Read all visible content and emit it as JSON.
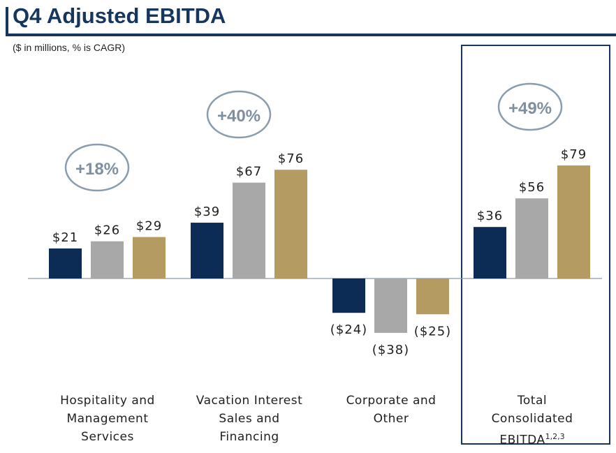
{
  "header": {
    "title": "Q4 Adjusted EBITDA",
    "subtitle": "($ in millions, % is CAGR)"
  },
  "colors": {
    "brand": "#17365d",
    "series": [
      "#0c2c55",
      "#a8a8a8",
      "#b49b62"
    ],
    "cagr_ellipse": "#8a9cad",
    "cagr_text": "#7f8fa0",
    "baseline": "#8a97a8"
  },
  "chart_data": {
    "type": "bar",
    "title": "Q4 Adjusted EBITDA",
    "subtitle": "($ in millions, % is CAGR)",
    "categories": [
      "Hospitality and Management Services",
      "Vacation Interest Sales and Financing",
      "Corporate and Other",
      "Total Consolidated EBITDA"
    ],
    "category_lines": [
      [
        "Hospitality and",
        "Management",
        "Services"
      ],
      [
        "Vacation Interest",
        "Sales and",
        "Financing"
      ],
      [
        "Corporate and",
        "Other"
      ],
      [
        "Total",
        "Consolidated",
        "EBITDA"
      ]
    ],
    "footnote_marker": "1,2,3",
    "series": [
      {
        "values": [
          21,
          39,
          -24,
          36
        ],
        "labels": [
          "$21",
          "$39",
          "($24)",
          "$36"
        ]
      },
      {
        "values": [
          26,
          67,
          -38,
          56
        ],
        "labels": [
          "$26",
          "$67",
          "($38)",
          "$56"
        ]
      },
      {
        "values": [
          29,
          76,
          -25,
          79
        ],
        "labels": [
          "$29",
          "$76",
          "($25)",
          "$79"
        ]
      }
    ],
    "cagr": [
      "+18%",
      "+40%",
      null,
      "+49%"
    ],
    "ylim": [
      -38,
      79
    ],
    "legend": "none",
    "grid": false
  }
}
